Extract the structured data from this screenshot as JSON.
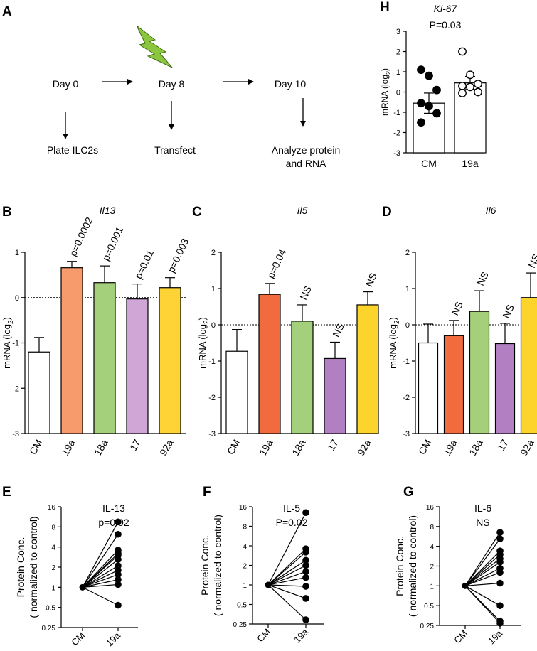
{
  "panel_letters": {
    "A": "A",
    "B": "B",
    "C": "C",
    "D": "D",
    "E": "E",
    "F": "F",
    "G": "G",
    "H": "H"
  },
  "workflow": {
    "day0": "Day 0",
    "day8": "Day 8",
    "day10": "Day 10",
    "step0": "Plate ILC2s",
    "step8": "Transfect",
    "step10_line1": "Analyze protein",
    "step10_line2": "and RNA",
    "lightning_color": "#8cc63f"
  },
  "chart_data": [
    {
      "id": "H",
      "type": "bar",
      "title": "Ki-67",
      "subtitle": "P=0.03",
      "ylabel": "mRNA (log",
      "ylabel_sub": "2",
      "ylabel_end": ")",
      "ylim": [
        -3,
        3
      ],
      "yticks": [
        "3",
        "2",
        "1",
        "0",
        "-1",
        "-2",
        "-3"
      ],
      "categories": [
        "CM",
        "19a"
      ],
      "values": [
        -0.55,
        0.45
      ],
      "errors": [
        0.5,
        0.32
      ],
      "colors": [
        "#ffffff",
        "#ffffff"
      ],
      "points": [
        {
          "filled": true,
          "values": [
            1.1,
            0.8,
            0.1,
            -0.55,
            -0.7,
            -1.05,
            -1.5
          ]
        },
        {
          "filled": false,
          "values": [
            2.0,
            0.85,
            0.4,
            0.3,
            0.25,
            0.0,
            -0.05
          ]
        }
      ]
    },
    {
      "id": "B",
      "type": "bar",
      "title": "Il13",
      "ylabel": "mRNA (log",
      "ylabel_sub": "2",
      "ylabel_end": ")",
      "ylim": [
        -3,
        1
      ],
      "yticks": [
        "1",
        "0",
        "-1",
        "-2",
        "-3"
      ],
      "categories": [
        "CM",
        "19a",
        "18a",
        "17",
        "92a"
      ],
      "values": [
        -1.2,
        0.66,
        0.33,
        -0.03,
        0.22
      ],
      "errors": [
        0.32,
        0.14,
        0.37,
        0.33,
        0.22
      ],
      "colors": [
        "#ffffff",
        "#f79a6c",
        "#a4cf7b",
        "#cfa6d6",
        "#fdd335"
      ],
      "annotations": [
        "",
        "p=0.0002",
        "p=0.001",
        "p=0.01",
        "p=0.003"
      ]
    },
    {
      "id": "C",
      "type": "bar",
      "title": "Il5",
      "ylabel": "mRNA (log",
      "ylabel_sub": "2",
      "ylabel_end": ")",
      "ylim": [
        -3,
        2
      ],
      "yticks": [
        "2",
        "1",
        "0",
        "-1",
        "-2",
        "-3"
      ],
      "categories": [
        "CM",
        "19a",
        "18a",
        "17",
        "92a"
      ],
      "values": [
        -0.73,
        0.84,
        0.1,
        -0.93,
        0.55
      ],
      "errors": [
        0.6,
        0.3,
        0.45,
        0.45,
        0.36
      ],
      "colors": [
        "#ffffff",
        "#f26b3e",
        "#a4cf7b",
        "#b27fc2",
        "#fdd42b"
      ],
      "annotations": [
        "",
        "p=0.04",
        "NS",
        "NS",
        "NS"
      ]
    },
    {
      "id": "D",
      "type": "bar",
      "title": "Il6",
      "ylabel": "mRNA (log",
      "ylabel_sub": "2",
      "ylabel_end": ")",
      "ylim": [
        -3,
        2
      ],
      "yticks": [
        "2",
        "1",
        "0",
        "-1",
        "-2",
        "-3"
      ],
      "categories": [
        "CM",
        "19a",
        "18a",
        "17",
        "92a"
      ],
      "values": [
        -0.5,
        -0.3,
        0.37,
        -0.52,
        0.75
      ],
      "errors": [
        0.52,
        0.42,
        0.57,
        0.56,
        0.68
      ],
      "colors": [
        "#ffffff",
        "#f26b3e",
        "#a4cf7b",
        "#b27fc2",
        "#fdd42b"
      ],
      "annotations": [
        "",
        "NS",
        "NS",
        "NS",
        "NS"
      ]
    },
    {
      "id": "E",
      "type": "line",
      "title": "IL-13",
      "subtitle": "p=0.02",
      "ylabel": "Protein Conc.",
      "ylabel2": "( normalized to control)",
      "yscale": "log2",
      "ylim": [
        0.25,
        16
      ],
      "yticks": [
        "16",
        "8",
        "4",
        "2",
        "1",
        "0.5",
        "0.25"
      ],
      "categories": [
        "CM",
        "19a"
      ],
      "series": [
        {
          "name": "paired",
          "x": [
            1,
            1,
            1,
            1,
            1,
            1,
            1,
            1,
            1,
            1,
            1,
            1
          ],
          "values": [
            9.5,
            6.2,
            3.6,
            3.2,
            3.0,
            2.6,
            2.1,
            1.8,
            1.55,
            1.3,
            1.1,
            0.54
          ]
        }
      ]
    },
    {
      "id": "F",
      "type": "line",
      "title": "IL-5",
      "subtitle": "P=0.02",
      "ylabel": "Protein Conc.",
      "ylabel2": "( normalized to control)",
      "yscale": "log2",
      "ylim": [
        0.25,
        16
      ],
      "yticks": [
        "16",
        "8",
        "4",
        "2",
        "1",
        "0.5",
        "0.25"
      ],
      "categories": [
        "CM",
        "19a"
      ],
      "series": [
        {
          "name": "paired",
          "x": [
            1,
            1,
            1,
            1,
            1,
            1,
            1,
            1,
            1,
            1
          ],
          "values": [
            13,
            3.6,
            3.2,
            2.4,
            2.0,
            1.6,
            1.3,
            0.95,
            0.62,
            0.29
          ]
        }
      ]
    },
    {
      "id": "G",
      "type": "line",
      "title": "IL-6",
      "subtitle": "NS",
      "ylabel": "Protein Conc.",
      "ylabel2": "( normalized to control)",
      "yscale": "log2",
      "ylim": [
        0.25,
        16
      ],
      "yticks": [
        "16",
        "8",
        "4",
        "2",
        "1",
        "0.5",
        "0.25"
      ],
      "categories": [
        "CM",
        "19a"
      ],
      "series": [
        {
          "name": "paired",
          "x": [
            1,
            1,
            1,
            1,
            1,
            1,
            1,
            1,
            1,
            1,
            1,
            1
          ],
          "values": [
            6.5,
            5.2,
            3.4,
            3.0,
            2.6,
            2.3,
            1.85,
            1.6,
            1.1,
            0.5,
            0.29,
            0.27
          ]
        }
      ]
    }
  ]
}
